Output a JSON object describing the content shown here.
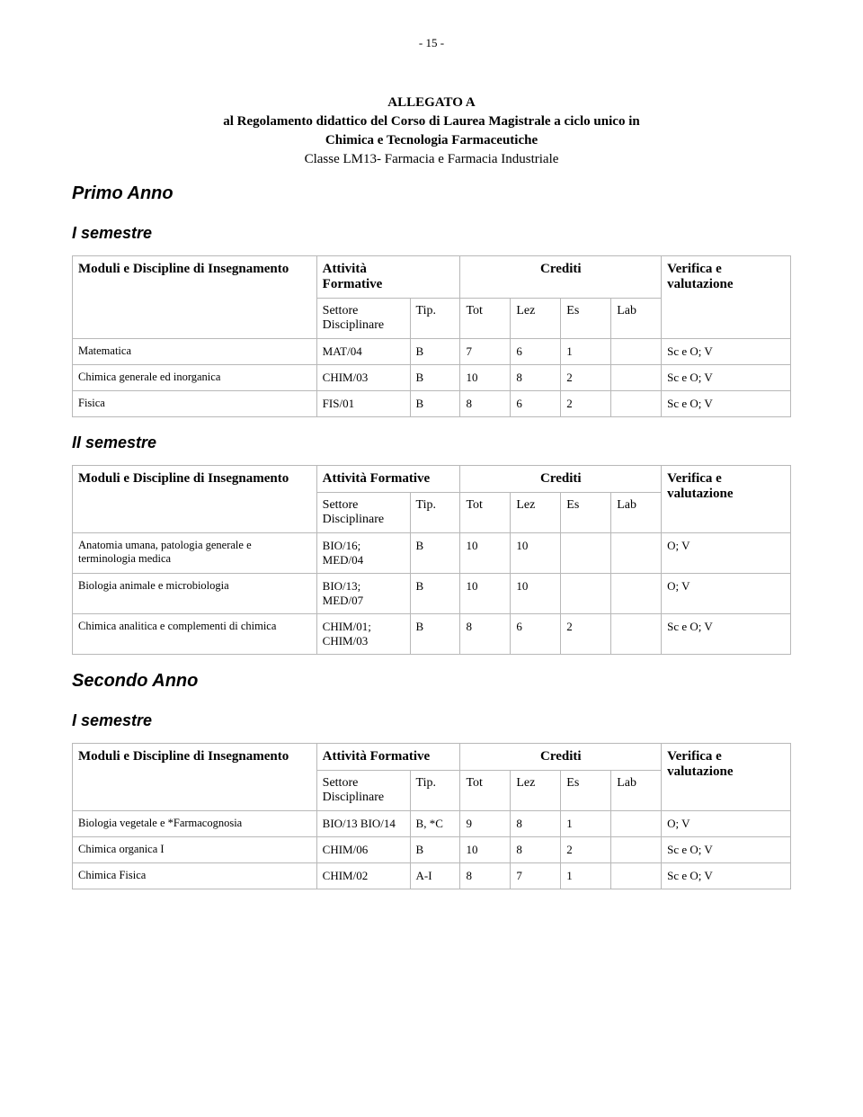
{
  "page_number": "- 15 -",
  "title": "ALLEGATO A",
  "subtitle": "al Regolamento didattico del Corso di Laurea Magistrale a ciclo unico in",
  "sub2": "Chimica e Tecnologia Farmaceutiche",
  "sub3": "Classe LM13- Farmacia e Farmacia Industriale",
  "headers": {
    "moduli": "Moduli e Discipline di Insegnamento",
    "attivita": "Attività Formative",
    "crediti": "Crediti",
    "verifica": "Verifica e valutazione",
    "settore": "Settore Disciplinare",
    "tip": "Tip.",
    "tot": "Tot",
    "lez": "Lez",
    "es": "Es",
    "lab": "Lab"
  },
  "sections": [
    {
      "year": "Primo Anno",
      "semesters": [
        {
          "label": "I  semestre",
          "attivita_colspan_style": "stacked",
          "rows": [
            {
              "name": "Matematica",
              "settore": "MAT/04",
              "tip": "B",
              "tot": "7",
              "lez": "6",
              "es": "1",
              "lab": "",
              "ver": "Sc e O; V"
            },
            {
              "name": "Chimica generale ed inorganica",
              "settore": "CHIM/03",
              "tip": "B",
              "tot": "10",
              "lez": "8",
              "es": "2",
              "lab": "",
              "ver": "Sc e O; V"
            },
            {
              "name": "Fisica",
              "settore": "FIS/01",
              "tip": "B",
              "tot": "8",
              "lez": "6",
              "es": "2",
              "lab": "",
              "ver": "Sc e O; V"
            }
          ]
        },
        {
          "label": "II  semestre",
          "rows": [
            {
              "name": "Anatomia umana, patologia generale e terminologia medica",
              "settore": "BIO/16; MED/04",
              "tip": "B",
              "tot": "10",
              "lez": "10",
              "es": "",
              "lab": "",
              "ver": "O; V"
            },
            {
              "name": "Biologia animale e microbiologia",
              "settore": "BIO/13; MED/07",
              "tip": "B",
              "tot": "10",
              "lez": "10",
              "es": "",
              "lab": "",
              "ver": "O; V"
            },
            {
              "name": "Chimica analitica e complementi di chimica",
              "settore": "CHIM/01; CHIM/03",
              "tip": "B",
              "tot": "8",
              "lez": "6",
              "es": "2",
              "lab": "",
              "ver": "Sc e O; V"
            }
          ]
        }
      ]
    },
    {
      "year": "Secondo Anno",
      "semesters": [
        {
          "label": "I semestre",
          "rows": [
            {
              "name": "Biologia vegetale e *Farmacognosia",
              "settore": "BIO/13 BIO/14",
              "tip": "B, *C",
              "tot": "9",
              "lez": "8",
              "es": "1",
              "lab": "",
              "ver": "O; V"
            },
            {
              "name": "Chimica organica I",
              "settore": "CHIM/06",
              "tip": "B",
              "tot": "10",
              "lez": "8",
              "es": "2",
              "lab": "",
              "ver": "Sc e O; V"
            },
            {
              "name": "Chimica Fisica",
              "settore": "CHIM/02",
              "tip": "A-I",
              "tot": "8",
              "lez": "7",
              "es": "1",
              "lab": "",
              "ver": "Sc e O; V"
            }
          ]
        }
      ]
    }
  ]
}
